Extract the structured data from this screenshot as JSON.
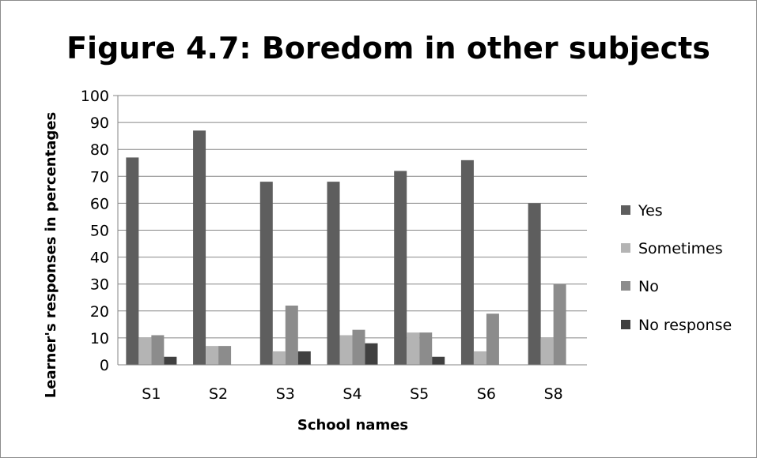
{
  "chart_data": {
    "type": "bar",
    "title": "Figure 4.7: Boredom in other subjects",
    "xlabel": "School names",
    "ylabel": "Learner's responses in percentages",
    "categories": [
      "S1",
      "S2",
      "S3",
      "S4",
      "S5",
      "S6",
      "S8"
    ],
    "ylim": [
      0,
      100
    ],
    "yticks": [
      0,
      10,
      20,
      30,
      40,
      50,
      60,
      70,
      80,
      90,
      100
    ],
    "grid": true,
    "legend_position": "right",
    "series": [
      {
        "name": "Yes",
        "color": "#5e5e5e",
        "values": [
          77,
          87,
          68,
          68,
          72,
          76,
          60
        ]
      },
      {
        "name": "Sometimes",
        "color": "#b4b4b4",
        "values": [
          10,
          7,
          5,
          11,
          12,
          5,
          10
        ]
      },
      {
        "name": "No",
        "color": "#8c8c8c",
        "values": [
          11,
          7,
          22,
          13,
          12,
          19,
          30
        ]
      },
      {
        "name": "No response",
        "color": "#404040",
        "values": [
          3,
          0,
          5,
          8,
          3,
          0,
          0
        ]
      }
    ]
  }
}
